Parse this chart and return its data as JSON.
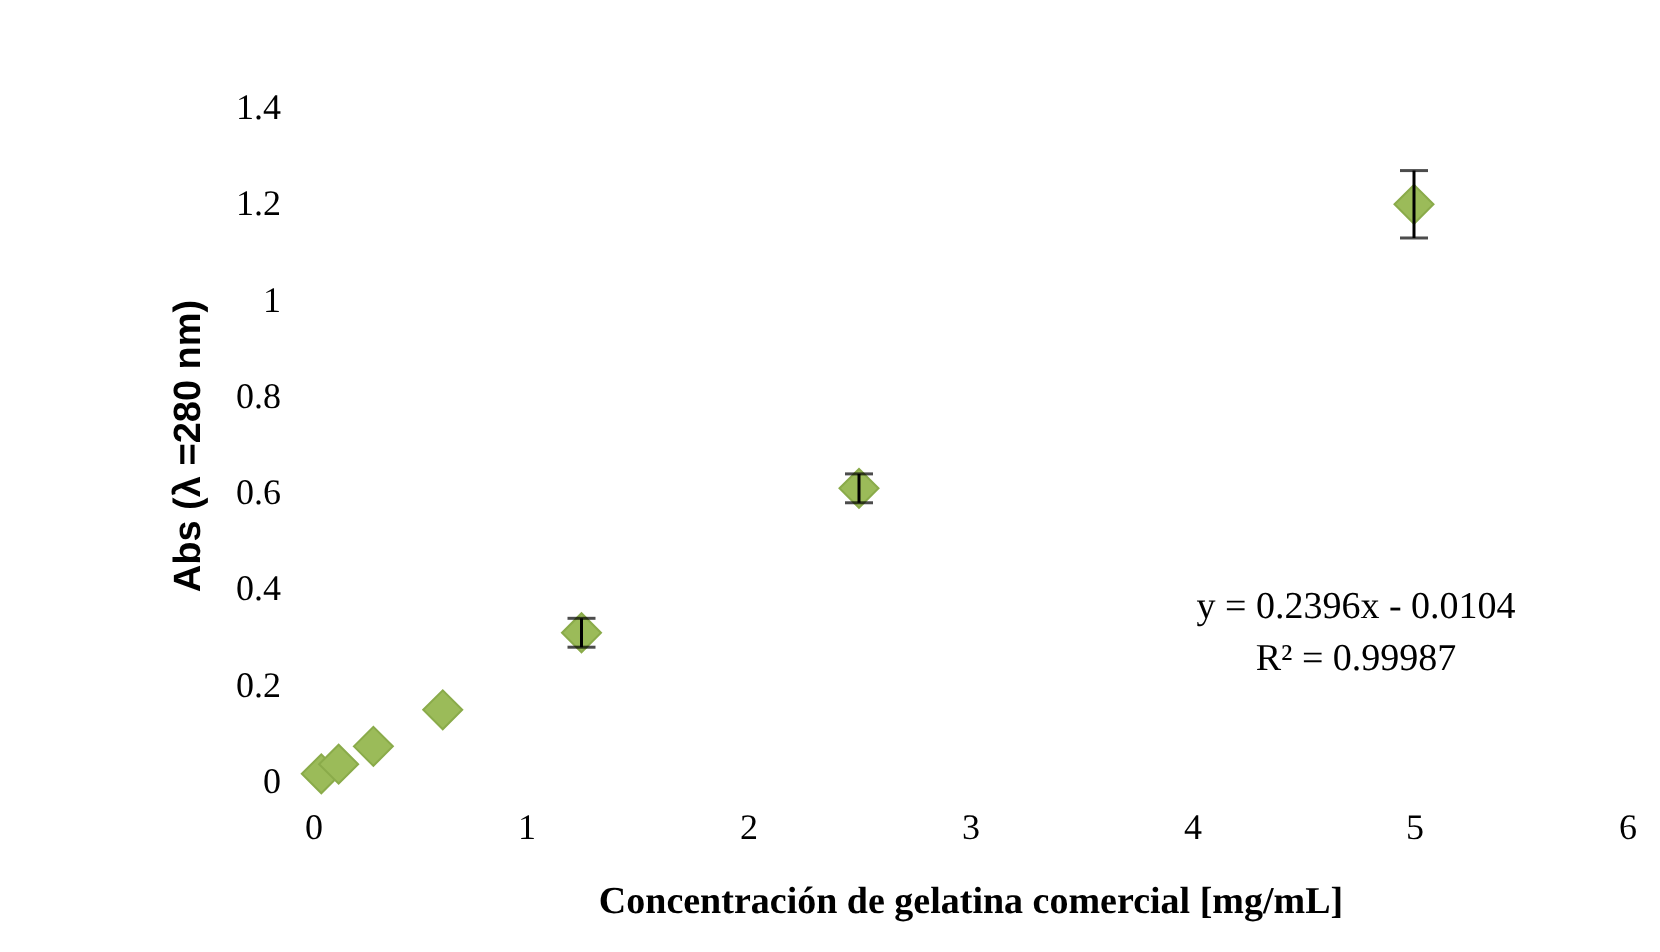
{
  "chart_data": {
    "type": "scatter",
    "xlabel": "Concentración de gelatina comercial [mg/mL]",
    "ylabel": "Abs (λ =280 nm)",
    "x": [
      0.078,
      0.156,
      0.3125,
      0.625,
      1.25,
      2.5,
      5
    ],
    "series": [
      {
        "color": "#9bbb59",
        "values": [
          0.017,
          0.037,
          0.074,
          0.15,
          0.31,
          0.61,
          1.2
        ],
        "errors": [
          null,
          null,
          null,
          null,
          0.03,
          0.03,
          0.07
        ]
      }
    ],
    "marker": "diamond",
    "xlim": [
      0,
      6
    ],
    "xticks": [
      0,
      1,
      2,
      3,
      4,
      5,
      6
    ],
    "ylim": [
      0,
      1.4
    ],
    "yticks": [
      0,
      0.2,
      0.4,
      0.6,
      0.8,
      1,
      1.2,
      1.4
    ],
    "annotations": [
      "y = 0.2396x - 0.0104",
      "R² = 0.99987"
    ]
  }
}
